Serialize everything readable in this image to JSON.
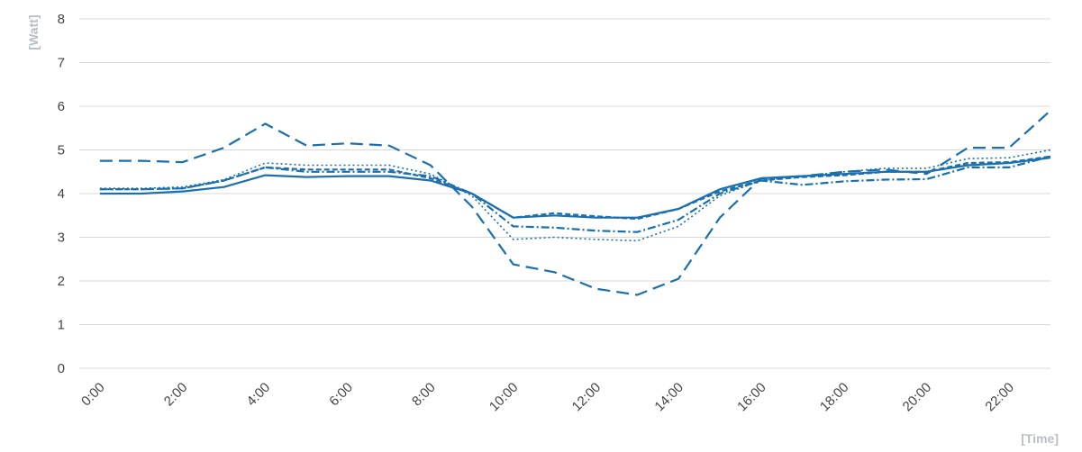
{
  "chart_data": {
    "type": "line",
    "title": "",
    "xlabel": "[Time]",
    "ylabel": "[Watt]",
    "ylim": [
      0,
      8
    ],
    "yticks": [
      0,
      1,
      2,
      3,
      4,
      5,
      6,
      7,
      8
    ],
    "x": [
      "0:00",
      "1:00",
      "2:00",
      "3:00",
      "4:00",
      "5:00",
      "6:00",
      "7:00",
      "8:00",
      "9:00",
      "10:00",
      "11:00",
      "12:00",
      "13:00",
      "14:00",
      "15:00",
      "16:00",
      "17:00",
      "18:00",
      "19:00",
      "20:00",
      "21:00",
      "22:00",
      "23:00"
    ],
    "xtick_labels": [
      "0:00",
      "2:00",
      "4:00",
      "6:00",
      "8:00",
      "10:00",
      "12:00",
      "14:00",
      "16:00",
      "18:00",
      "20:00",
      "22:00"
    ],
    "grid": true,
    "line_color": "#1a6fae",
    "series": [
      {
        "style": "solid",
        "values": [
          4.0,
          4.0,
          4.05,
          4.15,
          4.42,
          4.38,
          4.4,
          4.4,
          4.3,
          4.0,
          3.45,
          3.5,
          3.45,
          3.45,
          3.65,
          4.1,
          4.35,
          4.4,
          4.45,
          4.5,
          4.5,
          4.65,
          4.7,
          4.82
        ]
      },
      {
        "style": "dashed",
        "values": [
          4.1,
          4.1,
          4.12,
          4.3,
          4.6,
          4.55,
          4.55,
          4.55,
          4.35,
          4.0,
          3.45,
          3.55,
          3.48,
          3.42,
          3.65,
          4.05,
          4.3,
          4.38,
          4.42,
          4.5,
          4.5,
          4.7,
          4.72,
          4.85
        ]
      },
      {
        "style": "dash-dot",
        "values": [
          4.1,
          4.1,
          4.12,
          4.3,
          4.6,
          4.5,
          4.5,
          4.5,
          4.4,
          4.0,
          3.25,
          3.22,
          3.15,
          3.12,
          3.4,
          4.0,
          4.3,
          4.2,
          4.28,
          4.32,
          4.33,
          4.6,
          4.6,
          4.85
        ]
      },
      {
        "style": "dotted",
        "values": [
          4.12,
          4.12,
          4.15,
          4.32,
          4.7,
          4.65,
          4.65,
          4.65,
          4.45,
          3.95,
          2.95,
          3.0,
          2.95,
          2.92,
          3.25,
          3.95,
          4.3,
          4.4,
          4.5,
          4.58,
          4.58,
          4.8,
          4.82,
          5.0
        ]
      },
      {
        "style": "long-dash",
        "values": [
          4.75,
          4.75,
          4.72,
          5.05,
          5.6,
          5.1,
          5.15,
          5.1,
          4.65,
          3.7,
          2.38,
          2.2,
          1.82,
          1.68,
          2.05,
          3.45,
          4.35,
          4.4,
          4.5,
          4.55,
          4.45,
          5.05,
          5.05,
          5.9
        ]
      }
    ]
  }
}
